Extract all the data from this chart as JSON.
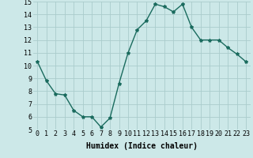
{
  "x": [
    0,
    1,
    2,
    3,
    4,
    5,
    6,
    7,
    8,
    9,
    10,
    11,
    12,
    13,
    14,
    15,
    16,
    17,
    18,
    19,
    20,
    21,
    22,
    23
  ],
  "y": [
    10.3,
    8.8,
    7.8,
    7.7,
    6.5,
    6.0,
    6.0,
    5.2,
    5.9,
    8.6,
    11.0,
    12.8,
    13.5,
    14.8,
    14.6,
    14.2,
    14.8,
    13.0,
    12.0,
    12.0,
    12.0,
    11.4,
    10.9,
    10.3
  ],
  "line_color": "#1a6b5e",
  "marker": "*",
  "marker_size": 3,
  "bg_color": "#cce8e8",
  "grid_color": "#aacccc",
  "xlabel": "Humidex (Indice chaleur)",
  "ylim": [
    5,
    15
  ],
  "xlim": [
    -0.5,
    23.5
  ],
  "yticks": [
    5,
    6,
    7,
    8,
    9,
    10,
    11,
    12,
    13,
    14,
    15
  ],
  "xticks": [
    0,
    1,
    2,
    3,
    4,
    5,
    6,
    7,
    8,
    9,
    10,
    11,
    12,
    13,
    14,
    15,
    16,
    17,
    18,
    19,
    20,
    21,
    22,
    23
  ],
  "xlabel_fontsize": 7,
  "tick_fontsize": 6,
  "line_width": 1.0
}
